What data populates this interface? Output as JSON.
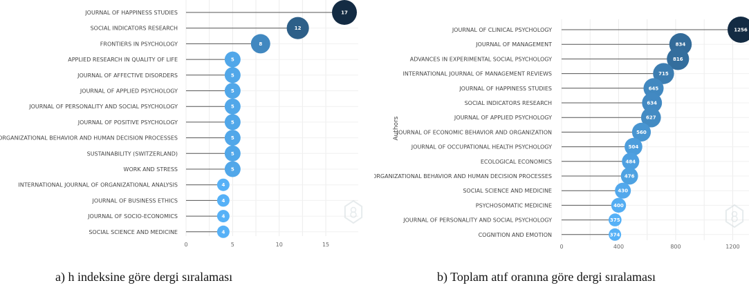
{
  "chart_data": [
    {
      "type": "lollipop",
      "ylabel": "",
      "xlim": [
        0,
        17
      ],
      "xticks": [
        0,
        5,
        10,
        15
      ],
      "categories": [
        "JOURNAL OF HAPPINESS STUDIES",
        "SOCIAL INDICATORS RESEARCH",
        "FRONTIERS IN PSYCHOLOGY",
        "APPLIED RESEARCH IN QUALITY OF LIFE",
        "JOURNAL OF AFFECTIVE DISORDERS",
        "JOURNAL OF APPLIED PSYCHOLOGY",
        "JOURNAL OF PERSONALITY AND SOCIAL PSYCHOLOGY",
        "JOURNAL OF POSITIVE PSYCHOLOGY",
        "ORGANIZATIONAL BEHAVIOR AND HUMAN DECISION PROCESSES",
        "SUSTAINABILITY (SWITZERLAND)",
        "WORK AND STRESS",
        "INTERNATIONAL JOURNAL OF ORGANIZATIONAL ANALYSIS",
        "JOURNAL OF BUSINESS ETHICS",
        "JOURNAL OF SOCIO-ECONOMICS",
        "SOCIAL SCIENCE AND MEDICINE"
      ],
      "values": [
        17,
        12,
        8,
        5,
        5,
        5,
        5,
        5,
        5,
        5,
        5,
        4,
        4,
        4,
        4
      ],
      "grid": true,
      "color_scale": [
        "#56b1f7",
        "#132b43"
      ]
    },
    {
      "type": "lollipop",
      "ylabel": "Authors",
      "xlim": [
        0,
        1256
      ],
      "xticks": [
        0,
        400,
        800,
        1200
      ],
      "categories": [
        "JOURNAL OF CLINICAL PSYCHOLOGY",
        "JOURNAL OF MANAGEMENT",
        "ADVANCES IN EXPERIMENTAL SOCIAL PSYCHOLOGY",
        "INTERNATIONAL JOURNAL OF MANAGEMENT REVIEWS",
        "JOURNAL OF HAPPINESS STUDIES",
        "SOCIAL INDICATORS RESEARCH",
        "JOURNAL OF APPLIED PSYCHOLOGY",
        "JOURNAL OF ECONOMIC BEHAVIOR AND ORGANIZATION",
        "JOURNAL OF OCCUPATIONAL HEALTH PSYCHOLOGY",
        "ECOLOGICAL ECONOMICS",
        "ORGANIZATIONAL BEHAVIOR AND HUMAN DECISION PROCESSES",
        "SOCIAL SCIENCE AND MEDICINE",
        "PSYCHOSOMATIC MEDICINE",
        "JOURNAL OF PERSONALITY AND SOCIAL PSYCHOLOGY",
        "COGNITION AND EMOTION"
      ],
      "values": [
        1256,
        834,
        816,
        715,
        645,
        634,
        627,
        560,
        504,
        484,
        476,
        430,
        400,
        375,
        374
      ],
      "grid": true,
      "color_scale": [
        "#56b1f7",
        "#132b43"
      ]
    }
  ],
  "captions": {
    "a": "a) h indeksine göre dergi sıralaması",
    "b": "b) Toplam atıf oranına göre dergi sıralaması"
  }
}
